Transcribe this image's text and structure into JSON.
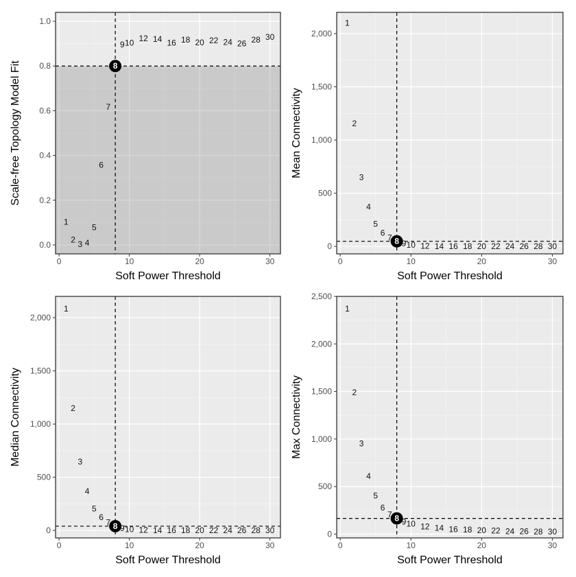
{
  "chart_data": [
    {
      "id": "sft",
      "type": "scatter",
      "title": "",
      "xlabel": "Soft Power Threshold",
      "ylabel": "Scale-free Topology Model Fit",
      "xlim": [
        -0.5,
        31.5
      ],
      "ylim": [
        -0.04,
        1.04
      ],
      "xticks": [
        0,
        10,
        20,
        30
      ],
      "xtick_labels": [
        "0",
        "10",
        "20",
        "30"
      ],
      "yticks": [
        0.0,
        0.2,
        0.4,
        0.6,
        0.8,
        1.0
      ],
      "ytick_labels": [
        "0.0",
        "0.2",
        "0.4",
        "0.6",
        "0.8",
        "1.0"
      ],
      "x": [
        1,
        2,
        3,
        4,
        5,
        6,
        7,
        8,
        9,
        10,
        12,
        14,
        16,
        18,
        20,
        22,
        24,
        26,
        28,
        30
      ],
      "y": [
        0.102,
        0.023,
        0.003,
        0.009,
        0.078,
        0.358,
        0.617,
        0.8,
        0.896,
        0.903,
        0.923,
        0.92,
        0.904,
        0.918,
        0.905,
        0.914,
        0.906,
        0.9,
        0.918,
        0.93
      ],
      "labels": [
        "1",
        "2",
        "3",
        "4",
        "5",
        "6",
        "7",
        "8",
        "9",
        "10",
        "12",
        "14",
        "16",
        "18",
        "20",
        "22",
        "24",
        "26",
        "28",
        "30"
      ],
      "highlight": {
        "x": 8,
        "y": 0.8,
        "label": "8"
      },
      "vline": 8,
      "hline": 0.8,
      "shaded_below_hline": true
    },
    {
      "id": "mean",
      "type": "scatter",
      "title": "",
      "xlabel": "Soft Power Threshold",
      "ylabel": "Mean Connectivity",
      "xlim": [
        -0.5,
        31.5
      ],
      "ylim": [
        -70,
        2200
      ],
      "xticks": [
        0,
        10,
        20,
        30
      ],
      "xtick_labels": [
        "0",
        "10",
        "20",
        "30"
      ],
      "yticks": [
        0,
        500,
        1000,
        1500,
        2000
      ],
      "ytick_labels": [
        "0",
        "500",
        "1,000",
        "1,500",
        "2,000"
      ],
      "x": [
        1,
        2,
        3,
        4,
        5,
        6,
        7,
        8,
        9,
        10,
        12,
        14,
        16,
        18,
        20,
        22,
        24,
        26,
        28,
        30
      ],
      "y": [
        2100,
        1155,
        648,
        372,
        211,
        127,
        80,
        48,
        26,
        14,
        5,
        2,
        1,
        0,
        0,
        0,
        0,
        0,
        0,
        0
      ],
      "labels": [
        "1",
        "2",
        "3",
        "4",
        "5",
        "6",
        "7",
        "8",
        "9",
        "10",
        "12",
        "14",
        "16",
        "18",
        "20",
        "22",
        "24",
        "26",
        "28",
        "30"
      ],
      "highlight": {
        "x": 8,
        "y": 48,
        "label": "8"
      },
      "vline": 8,
      "hline": 48
    },
    {
      "id": "median",
      "type": "scatter",
      "title": "",
      "xlabel": "Soft Power Threshold",
      "ylabel": "Median Connectivity",
      "xlim": [
        -0.5,
        31.5
      ],
      "ylim": [
        -70,
        2200
      ],
      "xticks": [
        0,
        10,
        20,
        30
      ],
      "xtick_labels": [
        "0",
        "10",
        "20",
        "30"
      ],
      "yticks": [
        0,
        500,
        1000,
        1500,
        2000
      ],
      "ytick_labels": [
        "0",
        "500",
        "1,000",
        "1,500",
        "2,000"
      ],
      "x": [
        1,
        2,
        3,
        4,
        5,
        6,
        7,
        8,
        9,
        10,
        12,
        14,
        16,
        18,
        20,
        22,
        24,
        26,
        28,
        30
      ],
      "y": [
        2085,
        1150,
        645,
        367,
        205,
        122,
        74,
        40,
        20,
        10,
        4,
        2,
        1,
        0,
        0,
        0,
        0,
        0,
        0,
        0
      ],
      "labels": [
        "1",
        "2",
        "3",
        "4",
        "5",
        "6",
        "7",
        "8",
        "9",
        "10",
        "12",
        "14",
        "16",
        "18",
        "20",
        "22",
        "24",
        "26",
        "28",
        "30"
      ],
      "highlight": {
        "x": 8,
        "y": 40,
        "label": "8"
      },
      "vline": 8,
      "hline": 40
    },
    {
      "id": "max",
      "type": "scatter",
      "title": "",
      "xlabel": "Soft Power Threshold",
      "ylabel": "Max Connectivity",
      "xlim": [
        -0.5,
        31.5
      ],
      "ylim": [
        -40,
        2500
      ],
      "xticks": [
        0,
        10,
        20,
        30
      ],
      "xtick_labels": [
        "0",
        "10",
        "20",
        "30"
      ],
      "yticks": [
        0,
        500,
        1000,
        1500,
        2000,
        2500
      ],
      "ytick_labels": [
        "0",
        "500",
        "1,000",
        "1,500",
        "2,000",
        "2,500"
      ],
      "x": [
        1,
        2,
        3,
        4,
        5,
        6,
        7,
        8,
        9,
        10,
        12,
        14,
        16,
        18,
        20,
        22,
        24,
        26,
        28,
        30
      ],
      "y": [
        2370,
        1490,
        952,
        610,
        402,
        278,
        205,
        165,
        130,
        108,
        80,
        63,
        52,
        46,
        39,
        34,
        28,
        27,
        26,
        26
      ],
      "labels": [
        "1",
        "2",
        "3",
        "4",
        "5",
        "6",
        "7",
        "8",
        "9",
        "10",
        "12",
        "14",
        "16",
        "18",
        "20",
        "22",
        "24",
        "26",
        "28",
        "30"
      ],
      "highlight": {
        "x": 8,
        "y": 165,
        "label": "8"
      },
      "vline": 8,
      "hline": 165
    }
  ]
}
